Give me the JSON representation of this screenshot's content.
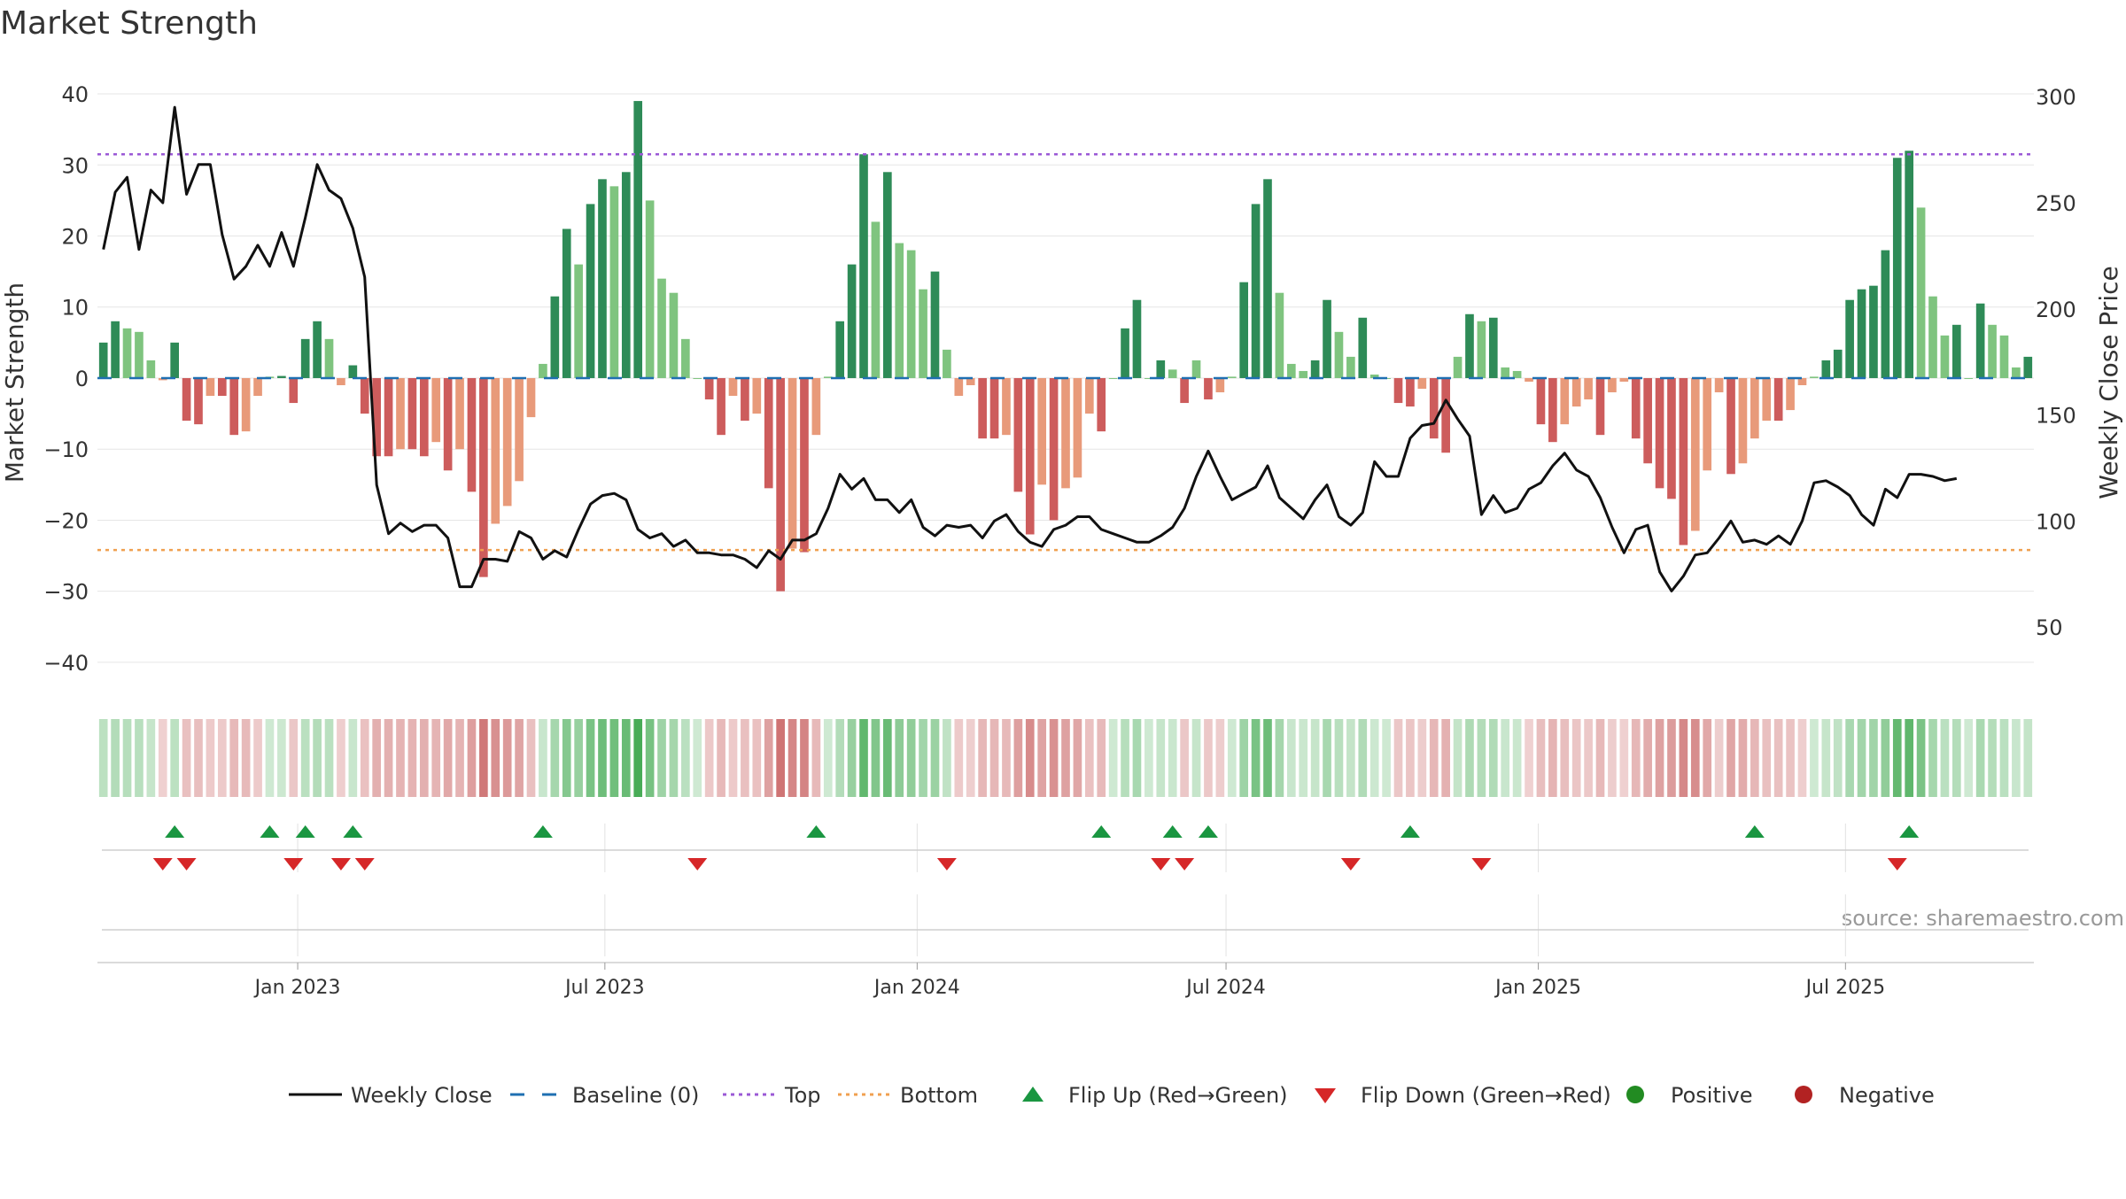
{
  "title": "Market Strength",
  "source": "source: sharemaestro.com",
  "colors": {
    "close": "#111111",
    "baseline": "#1f6fb2",
    "top": "#9b59d6",
    "bottom": "#f0a050",
    "pos_strong": "#2e8b57",
    "pos_light": "#7fc47f",
    "neg_strong": "#cd5c5c",
    "neg_light": "#e89a7a",
    "flip_up": "#1a9641",
    "flip_down": "#d62728",
    "positive": "#228b22",
    "negative": "#b22222",
    "grid": "#e6e6e6"
  },
  "chart_data": {
    "type": "bar+line",
    "title": "Market Strength",
    "ylabel": "Market Strength",
    "ylabel_right": "Weekly Close Price",
    "ylim": [
      -44,
      42
    ],
    "ylim_right": [
      20,
      308
    ],
    "yticks": [
      40,
      30,
      20,
      10,
      0,
      -10,
      -20,
      -30,
      -40
    ],
    "yticks_labels": [
      "40",
      "30",
      "20",
      "10",
      "0",
      "−10",
      "−20",
      "−30",
      "−40"
    ],
    "yticks_right": [
      300,
      250,
      200,
      150,
      100,
      50
    ],
    "top_line": 31.5,
    "bottom_line": -24.2,
    "x_start": "2022-09-05",
    "x_end": "2025-10-20",
    "xticks": [
      {
        "date": "2023-01-01",
        "label": "Jan 2023"
      },
      {
        "date": "2023-07-01",
        "label": "Jul 2023"
      },
      {
        "date": "2024-01-01",
        "label": "Jan 2024"
      },
      {
        "date": "2024-07-01",
        "label": "Jul 2024"
      },
      {
        "date": "2025-01-01",
        "label": "Jan 2025"
      },
      {
        "date": "2025-07-01",
        "label": "Jul 2025"
      }
    ],
    "strength": [
      5,
      8,
      7,
      6.5,
      2.5,
      -0.3,
      5,
      -6,
      -6.5,
      -2.5,
      -2.5,
      -8,
      -7.5,
      -2.5,
      0.2,
      0.3,
      -3.5,
      5.5,
      8,
      5.5,
      -1,
      1.8,
      -5,
      -11,
      -11,
      -10,
      -10,
      -11,
      -9,
      -13,
      -10,
      -16,
      -28,
      -20.5,
      -18,
      -14.5,
      -5.5,
      2,
      11.5,
      21,
      16,
      24.5,
      28,
      27,
      29,
      39,
      25,
      14,
      12,
      5.5,
      0,
      -3,
      -8,
      -2.5,
      -6,
      -5,
      -15.5,
      -30,
      -24,
      -24.5,
      -8,
      0.2,
      8,
      16,
      31.5,
      22,
      29,
      19,
      18,
      12.5,
      15,
      4,
      -2.5,
      -1,
      -8.5,
      -8.5,
      -8,
      -16,
      -22,
      -15,
      -20,
      -15.5,
      -14,
      -5,
      -7.5,
      0,
      7,
      11,
      0,
      2.5,
      1.2,
      -3.5,
      2.5,
      -3,
      -2,
      0.2,
      13.5,
      24.5,
      28,
      12,
      2,
      1,
      2.5,
      11,
      6.5,
      3,
      8.5,
      0.5,
      0,
      -3.5,
      -4,
      -1.5,
      -8.5,
      -10.5,
      3,
      9,
      8,
      8.5,
      1.5,
      1,
      -0.5,
      -6.5,
      -9,
      -6.5,
      -4,
      -3,
      -8,
      -2,
      -0.5,
      -8.5,
      -12,
      -15.5,
      -17,
      -23.5,
      -21.5,
      -13,
      -2,
      -13.5,
      -12,
      -8.5,
      -6,
      -6,
      -4.5,
      -1,
      0.2,
      2.5,
      4,
      11,
      12.5,
      13,
      18,
      31,
      32,
      24,
      11.5,
      6,
      7.5,
      0,
      10.5,
      7.5,
      6,
      1.5,
      3
    ],
    "close": [
      228,
      255,
      262,
      228,
      256,
      250,
      295,
      254,
      268,
      268,
      235,
      214,
      220,
      230,
      220,
      236,
      220,
      243,
      268,
      256,
      252,
      238,
      215,
      117,
      94,
      99,
      95,
      98,
      98,
      92,
      69,
      69,
      82,
      82,
      81,
      95,
      92,
      82,
      86,
      83,
      96,
      108,
      112,
      113,
      110,
      96,
      92,
      94,
      88,
      91,
      85,
      85,
      84,
      84,
      82,
      78,
      86,
      82,
      91,
      91,
      94,
      106,
      122,
      115,
      120,
      110,
      110,
      104,
      110,
      97,
      93,
      98,
      97,
      98,
      92,
      100,
      103,
      95,
      90,
      88,
      96,
      98,
      102,
      102,
      96,
      94,
      92,
      90,
      90,
      93,
      97,
      106,
      121,
      133,
      121,
      110,
      113,
      116,
      126,
      111,
      106,
      101,
      110,
      117,
      102,
      98,
      104,
      128,
      121,
      121,
      139,
      145,
      146,
      157,
      148,
      140,
      103,
      112,
      104,
      106,
      115,
      118,
      126,
      132,
      124,
      121,
      111,
      97,
      85,
      96,
      98,
      76,
      67,
      74,
      84,
      85,
      92,
      100,
      90,
      91,
      89,
      93,
      89,
      100,
      118,
      119,
      116,
      112,
      103,
      98,
      115,
      111,
      122,
      122,
      121,
      119,
      120
    ],
    "flip_up": [
      6,
      14,
      17,
      21,
      37,
      60,
      84,
      90,
      93,
      110,
      139,
      152
    ],
    "flip_down": [
      5,
      7,
      16,
      20,
      22,
      50,
      71,
      89,
      91,
      105,
      116,
      151
    ],
    "legend": [
      {
        "label": "Weekly Close",
        "kind": "line",
        "color": "#111111"
      },
      {
        "label": "Baseline (0)",
        "kind": "dash",
        "color": "#1f6fb2"
      },
      {
        "label": "Top",
        "kind": "dot",
        "color": "#9b59d6"
      },
      {
        "label": "Bottom",
        "kind": "dot",
        "color": "#f0a050"
      },
      {
        "label": "Flip Up (Red→Green)",
        "kind": "up",
        "color": "#1a9641"
      },
      {
        "label": "Flip Down (Green→Red)",
        "kind": "down",
        "color": "#d62728"
      },
      {
        "label": "Positive",
        "kind": "circle",
        "color": "#228b22"
      },
      {
        "label": "Negative",
        "kind": "circle",
        "color": "#b22222"
      }
    ]
  }
}
